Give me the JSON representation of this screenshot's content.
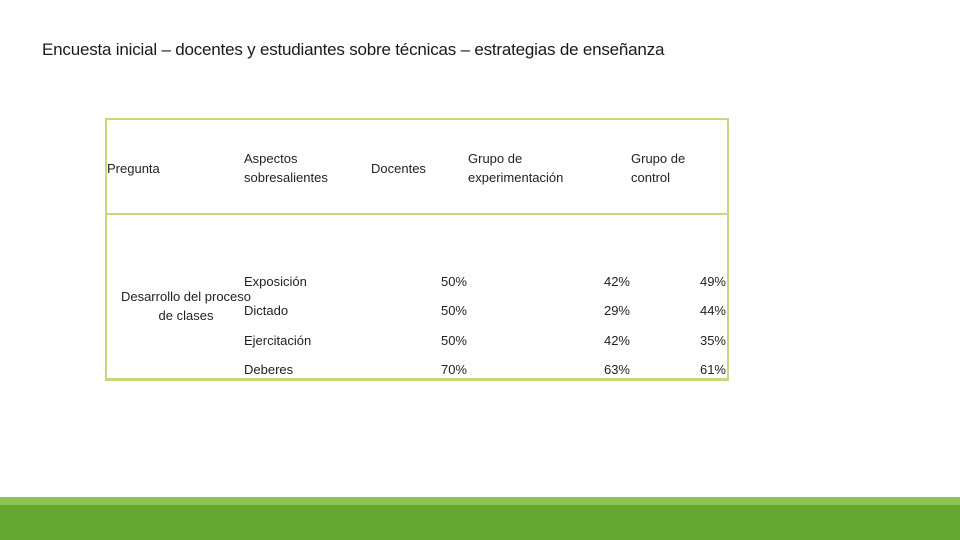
{
  "title": "Encuesta inicial – docentes y estudiantes sobre técnicas – estrategias de enseñanza",
  "table": {
    "headers": {
      "pregunta": "Pregunta",
      "aspectos": "Aspectos sobresalientes",
      "docentes": "Docentes",
      "experimentacion": "Grupo de experimentación",
      "control": "Grupo de control"
    },
    "question": "Desarrollo del proceso de clases",
    "rows": [
      {
        "aspecto": "Exposición",
        "docentes": "50%",
        "experimentacion": "42%",
        "control": "49%"
      },
      {
        "aspecto": "Dictado",
        "docentes": "50%",
        "experimentacion": "29%",
        "control": "44%"
      },
      {
        "aspecto": "Ejercitación",
        "docentes": "50%",
        "experimentacion": "42%",
        "control": "35%"
      },
      {
        "aspecto": "Deberes",
        "docentes": "70%",
        "experimentacion": "63%",
        "control": "61%"
      }
    ]
  },
  "colors": {
    "table_border": "#c3d97d",
    "footer_light": "#8cc252",
    "footer_dark": "#63a631"
  }
}
